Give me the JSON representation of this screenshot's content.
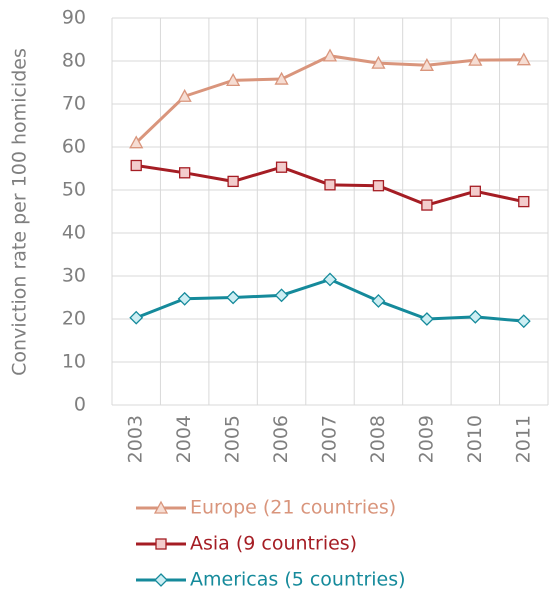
{
  "chart_data": {
    "type": "line",
    "y_label": "Conviction rate per 100 homicides",
    "categories": [
      "2003",
      "2004",
      "2005",
      "2006",
      "2007",
      "2008",
      "2009",
      "2010",
      "2011"
    ],
    "series": [
      {
        "name": "Europe (21 countries)",
        "color": "#d9957c",
        "marker": "triangle",
        "marker_fill": "#f6ddd3",
        "values": [
          61,
          71.8,
          75.5,
          75.8,
          81.2,
          79.5,
          79,
          80.2,
          80.3
        ]
      },
      {
        "name": "Asia (9 countries)",
        "color": "#a51d24",
        "marker": "square",
        "marker_fill": "#f3cccc",
        "values": [
          55.7,
          54,
          52,
          55.3,
          51.2,
          51,
          46.5,
          49.7,
          47.3
        ]
      },
      {
        "name": "Americas (5 countries)",
        "color": "#158a9b",
        "marker": "diamond",
        "marker_fill": "#cdeef3",
        "values": [
          20.3,
          24.7,
          25,
          25.5,
          29.2,
          24.2,
          20,
          20.5,
          19.5
        ]
      }
    ],
    "ylim": [
      0,
      90
    ],
    "yticks": [
      0,
      10,
      20,
      30,
      40,
      50,
      60,
      70,
      80,
      90
    ],
    "grid": true
  }
}
